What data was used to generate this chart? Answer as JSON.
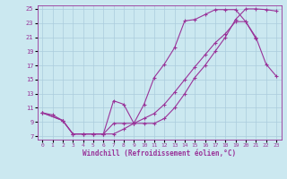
{
  "xlabel": "Windchill (Refroidissement éolien,°C)",
  "bg_color": "#cbe8f0",
  "line_color": "#993399",
  "grid_color": "#aaccdd",
  "xlim": [
    -0.5,
    23.5
  ],
  "ylim": [
    6.5,
    25.5
  ],
  "xticks": [
    0,
    1,
    2,
    3,
    4,
    5,
    6,
    7,
    8,
    9,
    10,
    11,
    12,
    13,
    14,
    15,
    16,
    17,
    18,
    19,
    20,
    21,
    22,
    23
  ],
  "yticks": [
    7,
    9,
    11,
    13,
    15,
    17,
    19,
    21,
    23,
    25
  ],
  "curve1_x": [
    0,
    1,
    2,
    3,
    4,
    5,
    6,
    7,
    8,
    9,
    10,
    11,
    12,
    13,
    14,
    15,
    16,
    17,
    18,
    19,
    20,
    21
  ],
  "curve1_y": [
    10.3,
    10.0,
    9.2,
    7.3,
    7.3,
    7.3,
    7.3,
    8.8,
    8.8,
    8.8,
    11.5,
    15.3,
    17.2,
    19.5,
    23.3,
    23.5,
    24.2,
    24.9,
    24.9,
    24.9,
    23.2,
    20.8
  ],
  "curve2_x": [
    0,
    2,
    3,
    4,
    5,
    6,
    7,
    8,
    9,
    10,
    11,
    12,
    13,
    14,
    15,
    16,
    17,
    18,
    19,
    20,
    21,
    22,
    23
  ],
  "curve2_y": [
    10.3,
    9.2,
    7.3,
    7.3,
    7.3,
    7.3,
    7.3,
    8.0,
    8.8,
    9.5,
    10.2,
    11.5,
    13.2,
    15.0,
    16.8,
    18.5,
    20.2,
    21.5,
    23.2,
    23.2,
    21.0,
    17.2,
    15.5
  ],
  "curve3_x": [
    0,
    2,
    3,
    4,
    5,
    6,
    7,
    8,
    9,
    10,
    11,
    12,
    13,
    14,
    15,
    16,
    17,
    18,
    19,
    20,
    21,
    22,
    23
  ],
  "curve3_y": [
    10.3,
    9.2,
    7.3,
    7.3,
    7.3,
    7.3,
    12.0,
    11.5,
    8.8,
    8.8,
    8.8,
    9.5,
    11.0,
    13.0,
    15.3,
    17.0,
    19.0,
    21.0,
    23.5,
    25.0,
    25.0,
    24.9,
    24.7
  ]
}
